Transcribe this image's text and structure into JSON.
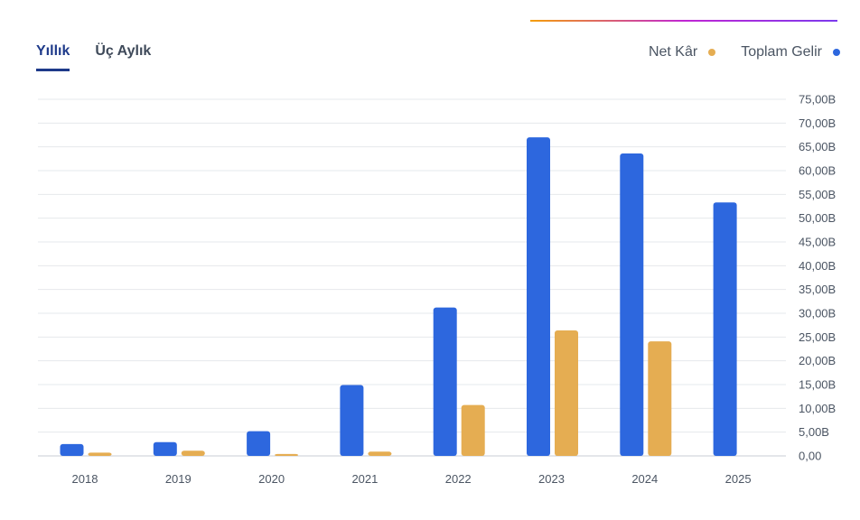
{
  "tabs": [
    {
      "label": "Yıllık",
      "active": true
    },
    {
      "label": "Üç Aylık",
      "active": false
    }
  ],
  "legend": [
    {
      "label": "Net Kâr",
      "color": "#e5ad52"
    },
    {
      "label": "Toplam Gelir",
      "color": "#2d67de"
    }
  ],
  "chart_data": {
    "type": "bar",
    "categories": [
      "2018",
      "2019",
      "2020",
      "2021",
      "2022",
      "2023",
      "2024",
      "2025"
    ],
    "series": [
      {
        "name": "Toplam Gelir",
        "color": "#2d67de",
        "values": [
          2.5,
          2.9,
          5.2,
          14.9,
          31.2,
          67.0,
          63.6,
          53.3
        ]
      },
      {
        "name": "Net Kâr",
        "color": "#e5ad52",
        "values": [
          0.7,
          1.1,
          0.4,
          0.9,
          10.7,
          26.4,
          24.1,
          null
        ]
      }
    ],
    "ylim": [
      0,
      75
    ],
    "yticks": [
      0,
      5,
      10,
      15,
      20,
      25,
      30,
      35,
      40,
      45,
      50,
      55,
      60,
      65,
      70,
      75
    ],
    "ytick_labels": [
      "0,00",
      "5,00B",
      "10,00B",
      "15,00B",
      "20,00B",
      "25,00B",
      "30,00B",
      "35,00B",
      "40,00B",
      "45,00B",
      "50,00B",
      "55,00B",
      "60,00B",
      "65,00B",
      "70,00B",
      "75,00B"
    ],
    "y_axis_side": "right",
    "grid": true,
    "legend_position": "top-right"
  }
}
